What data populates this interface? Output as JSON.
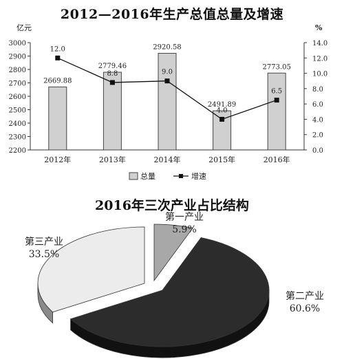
{
  "chart_data": [
    {
      "type": "bar",
      "title": "2012—2016年生产总值总量及增速",
      "ylabel_left": "亿元",
      "ylabel_right": "%",
      "categories": [
        "2012年",
        "2013年",
        "2014年",
        "2015年",
        "2016年"
      ],
      "series": [
        {
          "name": "总量",
          "type": "bar",
          "axis": "left",
          "values": [
            2669.88,
            2779.46,
            2920.58,
            2491.89,
            2773.05
          ],
          "labels": [
            "2669.88",
            "2779.46",
            "2920.58",
            "2491.89",
            "2773.05"
          ]
        },
        {
          "name": "增速",
          "type": "line",
          "axis": "right",
          "values": [
            12.0,
            8.8,
            9.0,
            4.0,
            6.5
          ],
          "labels": [
            "12.0",
            "8.8",
            "9.0",
            "4.0",
            "6.5"
          ]
        }
      ],
      "ylim_left": [
        2200,
        3000
      ],
      "ylim_right": [
        0,
        14
      ],
      "yticks_left": [
        "2200",
        "2300",
        "2400",
        "2500",
        "2600",
        "2700",
        "2800",
        "2900",
        "3000"
      ],
      "yticks_right": [
        "0.0",
        "2.0",
        "4.0",
        "6.0",
        "8.0",
        "10.0",
        "12.0",
        "14.0"
      ],
      "grid": false,
      "legend": "bottom"
    },
    {
      "type": "pie",
      "title": "2016年三次产业占比结构",
      "categories": [
        "第一产业",
        "第二产业",
        "第三产业"
      ],
      "values": [
        5.9,
        60.6,
        33.5
      ],
      "labels": [
        "5.9%",
        "60.6%",
        "33.5%"
      ],
      "colors": [
        "#a8a8a8",
        "#2c2c2c",
        "#ececec"
      ],
      "exploded": "第二产业"
    }
  ]
}
